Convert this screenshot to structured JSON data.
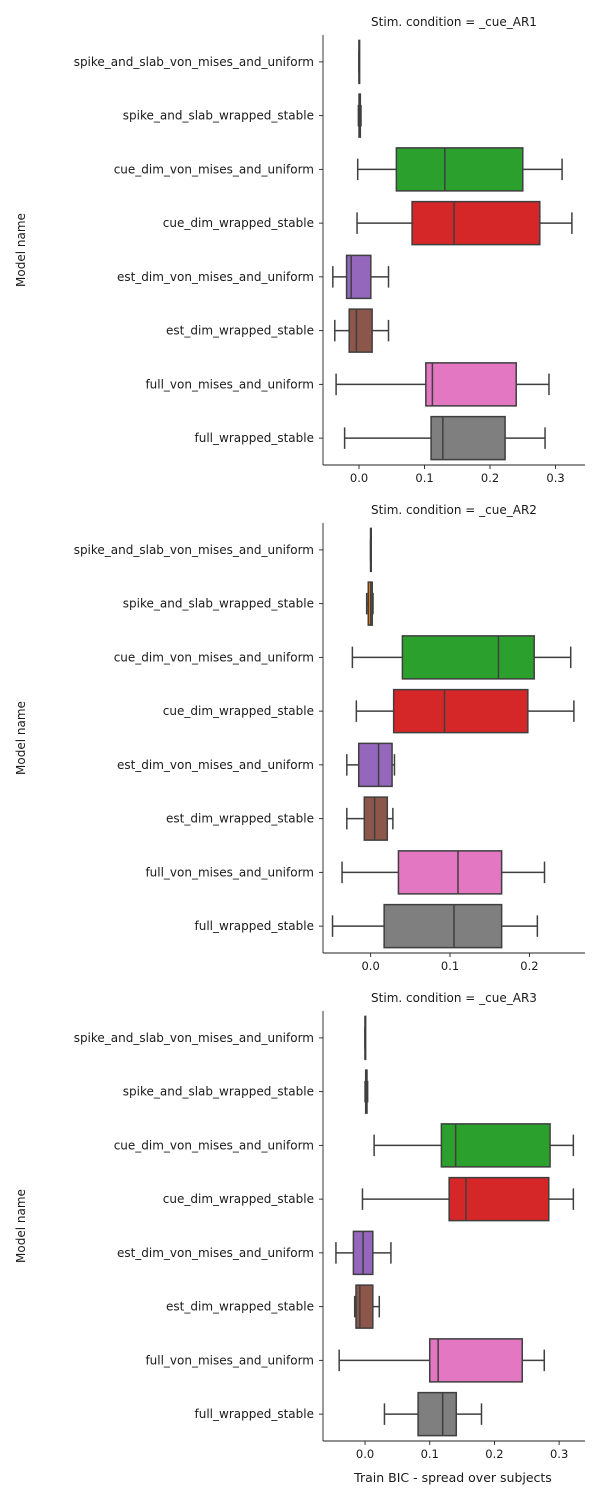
{
  "chart_data": {
    "type": "box",
    "ylabel": "Model name",
    "xlabel": "Train BIC - spread over subjects",
    "categories": [
      "spike_and_slab_von_mises_and_uniform",
      "spike_and_slab_wrapped_stable",
      "cue_dim_von_mises_and_uniform",
      "cue_dim_wrapped_stable",
      "est_dim_von_mises_and_uniform",
      "est_dim_wrapped_stable",
      "full_von_mises_and_uniform",
      "full_wrapped_stable"
    ],
    "colors": [
      "#1f77b4",
      "#ff7f0e",
      "#2ca02c",
      "#d62728",
      "#9467bd",
      "#8c564b",
      "#e377c2",
      "#7f7f7f"
    ],
    "panels": [
      {
        "title": "Stim. condition = _cue_AR1",
        "xlim": [
          -0.055,
          0.345
        ],
        "xticks": [
          0.0,
          0.1,
          0.2,
          0.3
        ],
        "xtick_labels": [
          "0.0",
          "0.1",
          "0.2",
          "0.3"
        ],
        "boxes": [
          {
            "min": 0.0,
            "q1": 0.0,
            "median": 0.0,
            "q3": 0.0,
            "max": 0.0
          },
          {
            "min": -0.001,
            "q1": 0.0,
            "median": 0.001,
            "q3": 0.002,
            "max": 0.003
          },
          {
            "min": -0.002,
            "q1": 0.057,
            "median": 0.131,
            "q3": 0.25,
            "max": 0.31
          },
          {
            "min": -0.003,
            "q1": 0.081,
            "median": 0.145,
            "q3": 0.276,
            "max": 0.325
          },
          {
            "min": -0.04,
            "q1": -0.019,
            "median": -0.012,
            "q3": 0.018,
            "max": 0.045
          },
          {
            "min": -0.037,
            "q1": -0.015,
            "median": -0.004,
            "q3": 0.02,
            "max": 0.045
          },
          {
            "min": -0.035,
            "q1": 0.102,
            "median": 0.112,
            "q3": 0.24,
            "max": 0.29
          },
          {
            "min": -0.022,
            "q1": 0.11,
            "median": 0.128,
            "q3": 0.223,
            "max": 0.284
          }
        ]
      },
      {
        "title": "Stim. condition = _cue_AR2",
        "xlim": [
          -0.06,
          0.27
        ],
        "xticks": [
          0.0,
          0.1,
          0.2
        ],
        "xtick_labels": [
          "0.0",
          "0.1",
          "0.2"
        ],
        "boxes": [
          {
            "min": 0.0,
            "q1": 0.0,
            "median": 0.0,
            "q3": 0.0,
            "max": 0.0
          },
          {
            "min": -0.005,
            "q1": -0.003,
            "median": 0.0,
            "q3": 0.002,
            "max": 0.003
          },
          {
            "min": -0.023,
            "q1": 0.04,
            "median": 0.161,
            "q3": 0.206,
            "max": 0.252
          },
          {
            "min": -0.018,
            "q1": 0.029,
            "median": 0.093,
            "q3": 0.198,
            "max": 0.256
          },
          {
            "min": -0.03,
            "q1": -0.015,
            "median": 0.01,
            "q3": 0.027,
            "max": 0.03
          },
          {
            "min": -0.03,
            "q1": -0.008,
            "median": 0.005,
            "q3": 0.021,
            "max": 0.028
          },
          {
            "min": -0.036,
            "q1": 0.035,
            "median": 0.11,
            "q3": 0.165,
            "max": 0.219
          },
          {
            "min": -0.048,
            "q1": 0.017,
            "median": 0.105,
            "q3": 0.165,
            "max": 0.21
          }
        ]
      },
      {
        "title": "Stim. condition = _cue_AR3",
        "xlim": [
          -0.065,
          0.34
        ],
        "xticks": [
          0.0,
          0.1,
          0.2,
          0.3
        ],
        "xtick_labels": [
          "0.0",
          "0.1",
          "0.2",
          "0.3"
        ],
        "boxes": [
          {
            "min": 0.0,
            "q1": 0.0,
            "median": 0.0,
            "q3": 0.0,
            "max": 0.0
          },
          {
            "min": 0.0,
            "q1": 0.001,
            "median": 0.002,
            "q3": 0.003,
            "max": 0.004
          },
          {
            "min": 0.014,
            "q1": 0.118,
            "median": 0.14,
            "q3": 0.286,
            "max": 0.322
          },
          {
            "min": -0.004,
            "q1": 0.13,
            "median": 0.156,
            "q3": 0.284,
            "max": 0.322
          },
          {
            "min": -0.045,
            "q1": -0.018,
            "median": -0.003,
            "q3": 0.012,
            "max": 0.04
          },
          {
            "min": -0.016,
            "q1": -0.014,
            "median": -0.008,
            "q3": 0.012,
            "max": 0.022
          },
          {
            "min": -0.04,
            "q1": 0.1,
            "median": 0.113,
            "q3": 0.243,
            "max": 0.277
          },
          {
            "min": 0.03,
            "q1": 0.082,
            "median": 0.12,
            "q3": 0.141,
            "max": 0.18
          }
        ]
      }
    ]
  }
}
